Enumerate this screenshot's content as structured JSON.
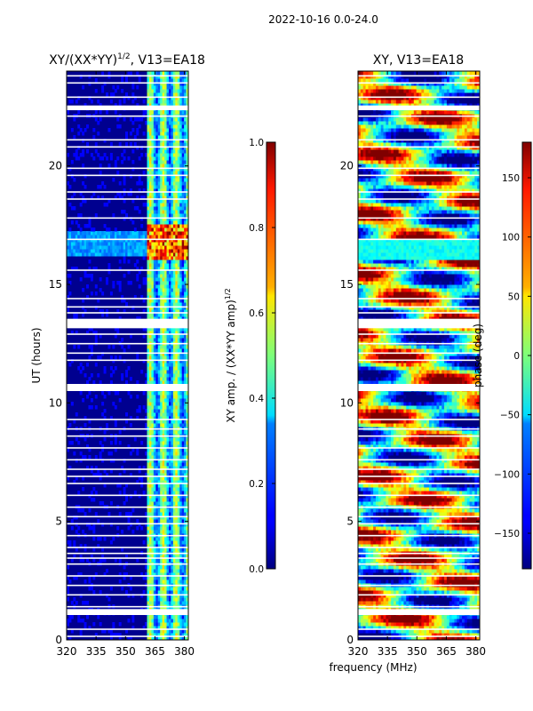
{
  "figure_title": "2022-10-16 0.0-24.0",
  "chart_data": [
    {
      "type": "heatmap",
      "title": "XY/(XX*YY)",
      "title_superscript": "1/2",
      "title_suffix": ", V13=EA18",
      "xlabel": "",
      "ylabel": "UT (hours)",
      "xlim": [
        320,
        382
      ],
      "ylim": [
        0,
        24
      ],
      "x_ticks": [
        320,
        335,
        350,
        365,
        380
      ],
      "y_ticks": [
        0,
        5,
        10,
        15,
        20
      ],
      "colormap": "jet",
      "colorbar": {
        "label": "XY amp. / (XX*YY amp)",
        "label_superscript": "1/2",
        "range": [
          0.0,
          1.0
        ],
        "ticks": [
          "0.0",
          "0.2",
          "0.4",
          "0.6",
          "0.8",
          "1.0"
        ]
      }
    },
    {
      "type": "heatmap",
      "title": "XY, V13=EA18",
      "xlabel": "frequency (MHz)",
      "ylabel": "",
      "xlim": [
        320,
        382
      ],
      "ylim": [
        0,
        24
      ],
      "x_ticks": [
        320,
        335,
        350,
        365,
        380
      ],
      "y_ticks": [
        0,
        5,
        10,
        15,
        20
      ],
      "colormap": "jet",
      "colorbar": {
        "label": "phase (deg)",
        "range": [
          -180,
          180
        ],
        "ticks": [
          "150",
          "100",
          "50",
          "0",
          "−50",
          "−100",
          "−150"
        ]
      }
    }
  ]
}
